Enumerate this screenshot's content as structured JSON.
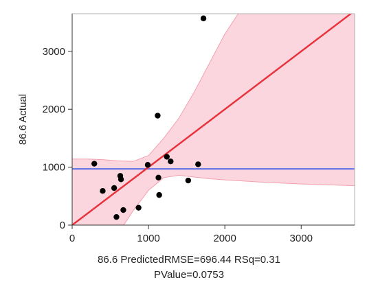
{
  "chart_data": {
    "type": "scatter",
    "title": "",
    "xlabel": "86.6 Predicted",
    "ylabel": "86.6 Actual",
    "xlim": [
      0,
      3700
    ],
    "ylim": [
      0,
      3650
    ],
    "x_ticks": [
      0,
      1000,
      2000,
      3000
    ],
    "y_ticks": [
      0,
      1000,
      2000,
      3000
    ],
    "x_tick_labels": [
      "0",
      "1000",
      "2000",
      "3000"
    ],
    "y_tick_labels": [
      "0",
      "1000",
      "2000",
      "3000"
    ],
    "grid": false,
    "points": [
      {
        "x": 290,
        "y": 1060
      },
      {
        "x": 400,
        "y": 590
      },
      {
        "x": 550,
        "y": 640
      },
      {
        "x": 580,
        "y": 140
      },
      {
        "x": 630,
        "y": 850
      },
      {
        "x": 640,
        "y": 790
      },
      {
        "x": 670,
        "y": 260
      },
      {
        "x": 870,
        "y": 300
      },
      {
        "x": 990,
        "y": 1040
      },
      {
        "x": 1120,
        "y": 1890
      },
      {
        "x": 1130,
        "y": 820
      },
      {
        "x": 1140,
        "y": 520
      },
      {
        "x": 1240,
        "y": 1180
      },
      {
        "x": 1290,
        "y": 1100
      },
      {
        "x": 1520,
        "y": 770
      },
      {
        "x": 1650,
        "y": 1050
      },
      {
        "x": 1720,
        "y": 3570
      }
    ],
    "fit_line": {
      "slope": 1.0,
      "intercept": 0
    },
    "mean_line": {
      "y": 970
    },
    "confidence_band": {
      "x": [
        0,
        200,
        400,
        600,
        800,
        1000,
        1200,
        1400,
        1600,
        1800,
        2000,
        2500,
        3000,
        3700
      ],
      "lower": [
        -1350,
        -950,
        -560,
        -150,
        250,
        600,
        820,
        860,
        830,
        800,
        780,
        740,
        710,
        680
      ],
      "upper": [
        1140,
        1140,
        1130,
        1110,
        1100,
        1200,
        1500,
        1850,
        2300,
        2800,
        3300,
        4300,
        5300,
        6700
      ]
    },
    "colors": {
      "points": "#000000",
      "fit_line": "#e8333d",
      "mean_line": "#5b6ee6",
      "band_fill": "#fcd6de",
      "band_edge": "#f3a0ad",
      "frame": "#b0b0b0"
    },
    "stats_text": "RMSE=696.44 RSq=0.31",
    "pvalue_text": "PValue=0.0753"
  }
}
